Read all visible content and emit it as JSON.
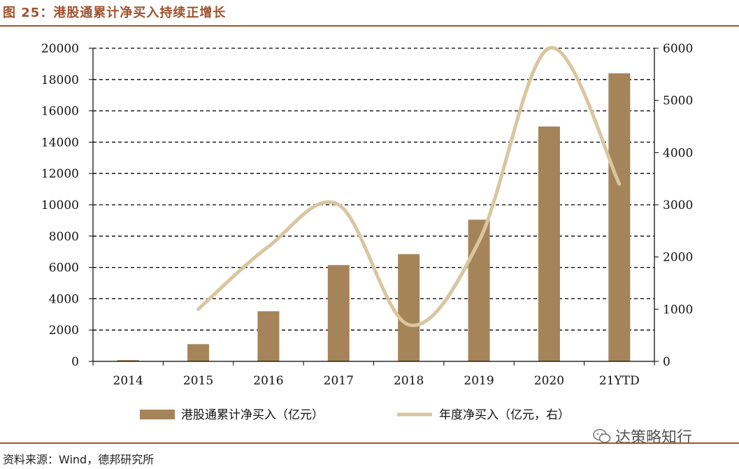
{
  "figure_title": "图 25：港股通累计净买入持续正增长",
  "source_note": "资料来源：Wind，德邦研究所",
  "watermark": "达策略知行",
  "colors": {
    "bar": "#a6845a",
    "line": "#d9c69f",
    "accent": "#a0522d",
    "grid": "#000000"
  },
  "chart_data": {
    "type": "bar",
    "categories": [
      "2014",
      "2015",
      "2016",
      "2017",
      "2018",
      "2019",
      "2020",
      "21YTD"
    ],
    "series": [
      {
        "name": "港股通累计净买入（亿元）",
        "type": "bar",
        "axis": "left",
        "values": [
          80,
          1100,
          3200,
          6150,
          6850,
          9050,
          15000,
          18400
        ]
      },
      {
        "name": "年度净买入（亿元，右）",
        "type": "line",
        "axis": "right",
        "values": [
          null,
          1000,
          2200,
          3000,
          700,
          2300,
          6000,
          3400
        ]
      }
    ],
    "y_left": {
      "min": 0,
      "max": 20000,
      "ticks": [
        "0",
        "2000",
        "4000",
        "6000",
        "8000",
        "10000",
        "12000",
        "14000",
        "16000",
        "18000",
        "20000"
      ]
    },
    "y_right": {
      "min": 0,
      "max": 6000,
      "ticks": [
        "0",
        "1000",
        "2000",
        "3000",
        "4000",
        "5000",
        "6000"
      ]
    },
    "grid": true,
    "legend_position": "bottom"
  }
}
